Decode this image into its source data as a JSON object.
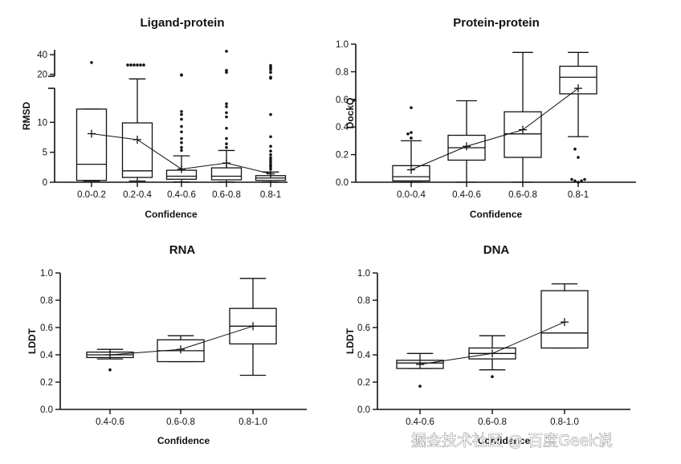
{
  "chart_data": [
    {
      "type": "box",
      "title": "Ligand-protein",
      "xlabel": "Confidence",
      "ylabel": "RMSD",
      "categories": [
        "0.0-0.2",
        "0.2-0.4",
        "0.4-0.6",
        "0.6-0.8",
        "0.8-1"
      ],
      "y_break": {
        "lower_ylim": [
          0,
          15
        ],
        "upper_ylim": [
          18,
          45
        ],
        "lower_ticks": [
          0,
          5,
          10
        ],
        "upper_ticks": [
          20,
          40
        ]
      },
      "boxes": [
        {
          "whisker_low": 0.2,
          "q1": 0.3,
          "median": 3.0,
          "q3": 12.2,
          "whisker_high": 12.2,
          "mean": 8.1,
          "outliers": [
            32
          ]
        },
        {
          "whisker_low": 0.2,
          "q1": 0.8,
          "median": 1.9,
          "q3": 9.9,
          "whisker_high": 15.3,
          "mean": 7.1,
          "outliers": [
            29.5,
            29.5,
            29.5,
            29.5,
            29.5,
            29.5
          ]
        },
        {
          "whisker_low": 0.05,
          "q1": 0.5,
          "median": 1.0,
          "q3": 2.0,
          "whisker_high": 4.4,
          "mean": 2.2,
          "outliers": [
            5.3,
            5.8,
            6.6,
            7.3,
            8.4,
            9.3,
            10.5,
            11.3,
            11.8,
            19,
            19.5
          ]
        },
        {
          "whisker_low": 0.05,
          "q1": 0.4,
          "median": 1.0,
          "q3": 2.4,
          "whisker_high": 5.3,
          "mean": 3.2,
          "outliers": [
            5.8,
            6.4,
            7.3,
            9.0,
            10.9,
            11.6,
            12.6,
            13.1,
            22,
            24,
            43.5
          ]
        },
        {
          "whisker_low": 0.05,
          "q1": 0.3,
          "median": 0.7,
          "q3": 1.1,
          "whisker_high": 1.7,
          "mean": 1.4,
          "outliers": [
            2.2,
            2.6,
            2.9,
            3.3,
            3.7,
            4.1,
            4.6,
            5.2,
            6.0,
            7.6,
            11.3,
            16,
            17,
            22,
            25,
            27,
            29
          ]
        }
      ]
    },
    {
      "type": "box",
      "title": "Protein-protein",
      "xlabel": "Confidence",
      "ylabel": "DockQ",
      "categories": [
        "0.0-0.4",
        "0.4-0.6",
        "0.6-0.8",
        "0.8-1"
      ],
      "ylim": [
        0,
        1.0
      ],
      "yticks": [
        "0.0",
        "0.2",
        "0.4",
        "0.6",
        "0.8",
        "1.0"
      ],
      "boxes": [
        {
          "whisker_low": 0.0,
          "q1": 0.01,
          "median": 0.04,
          "q3": 0.12,
          "whisker_high": 0.3,
          "mean": 0.09,
          "outliers": [
            0.32,
            0.35,
            0.36,
            0.54
          ]
        },
        {
          "whisker_low": 0.0,
          "q1": 0.16,
          "median": 0.25,
          "q3": 0.34,
          "whisker_high": 0.59,
          "mean": 0.26,
          "outliers": []
        },
        {
          "whisker_low": 0.0,
          "q1": 0.18,
          "median": 0.35,
          "q3": 0.51,
          "whisker_high": 0.94,
          "mean": 0.38,
          "outliers": []
        },
        {
          "whisker_low": 0.33,
          "q1": 0.64,
          "median": 0.76,
          "q3": 0.84,
          "whisker_high": 0.94,
          "mean": 0.68,
          "outliers": [
            0.0,
            0.01,
            0.01,
            0.02,
            0.02,
            0.18,
            0.24
          ]
        }
      ]
    },
    {
      "type": "box",
      "title": "RNA",
      "xlabel": "Confidence",
      "ylabel": "LDDT",
      "categories": [
        "0.4-0.6",
        "0.6-0.8",
        "0.8-1.0"
      ],
      "ylim": [
        0,
        1.0
      ],
      "yticks": [
        "0.0",
        "0.2",
        "0.4",
        "0.6",
        "0.8",
        "1.0"
      ],
      "boxes": [
        {
          "whisker_low": 0.37,
          "q1": 0.38,
          "median": 0.4,
          "q3": 0.42,
          "whisker_high": 0.44,
          "mean": 0.4,
          "outliers": [
            0.29
          ]
        },
        {
          "whisker_low": 0.35,
          "q1": 0.35,
          "median": 0.43,
          "q3": 0.51,
          "whisker_high": 0.54,
          "mean": 0.44,
          "outliers": []
        },
        {
          "whisker_low": 0.25,
          "q1": 0.48,
          "median": 0.61,
          "q3": 0.74,
          "whisker_high": 0.96,
          "mean": 0.61,
          "outliers": []
        }
      ]
    },
    {
      "type": "box",
      "title": "DNA",
      "xlabel": "Confidence",
      "ylabel": "LDDT",
      "categories": [
        "0.4-0.6",
        "0.6-0.8",
        "0.8-1.0"
      ],
      "ylim": [
        0,
        1.0
      ],
      "yticks": [
        "0.0",
        "0.2",
        "0.4",
        "0.6",
        "0.8",
        "1.0"
      ],
      "boxes": [
        {
          "whisker_low": 0.3,
          "q1": 0.3,
          "median": 0.34,
          "q3": 0.36,
          "whisker_high": 0.41,
          "mean": 0.33,
          "outliers": [
            0.17
          ]
        },
        {
          "whisker_low": 0.29,
          "q1": 0.37,
          "median": 0.41,
          "q3": 0.45,
          "whisker_high": 0.54,
          "mean": 0.41,
          "outliers": [
            0.24
          ]
        },
        {
          "whisker_low": 0.45,
          "q1": 0.45,
          "median": 0.56,
          "q3": 0.87,
          "whisker_high": 0.92,
          "mean": 0.64,
          "outliers": []
        }
      ]
    }
  ],
  "watermark": "掘金技术社区 @ 百度Geek说",
  "colors": {
    "ink": "#111111",
    "background": "#ffffff"
  }
}
